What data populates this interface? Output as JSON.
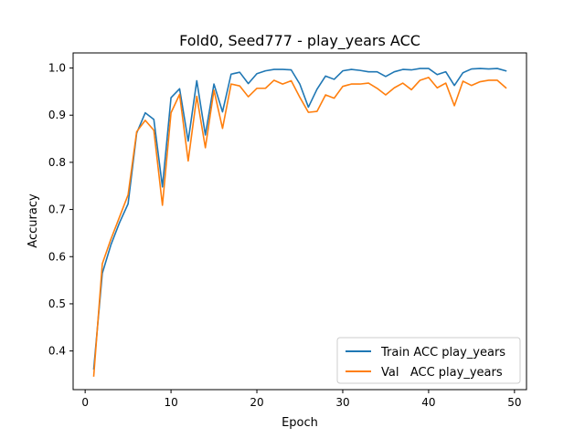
{
  "chart_data": {
    "type": "line",
    "title": "Fold0, Seed777 - play_years ACC",
    "xlabel": "Epoch",
    "ylabel": "Accuracy",
    "xlim": [
      -1.4,
      51.4
    ],
    "ylim": [
      0.318,
      1.032
    ],
    "xticks": [
      0,
      10,
      20,
      30,
      40,
      50
    ],
    "yticks": [
      0.4,
      0.5,
      0.6,
      0.7,
      0.8,
      0.9,
      1.0
    ],
    "ytick_labels": [
      "0.4",
      "0.5",
      "0.6",
      "0.7",
      "0.8",
      "0.9",
      "1.0"
    ],
    "grid": false,
    "legend_position": "lower-right",
    "x": [
      1,
      2,
      3,
      4,
      5,
      6,
      7,
      8,
      9,
      10,
      11,
      12,
      13,
      14,
      15,
      16,
      17,
      18,
      19,
      20,
      21,
      22,
      23,
      24,
      25,
      26,
      27,
      28,
      29,
      30,
      31,
      32,
      33,
      34,
      35,
      36,
      37,
      38,
      39,
      40,
      41,
      42,
      43,
      44,
      45,
      46,
      47,
      48,
      49
    ],
    "series": [
      {
        "name": "Train ACC play_years",
        "color": "#1f77b4",
        "values": [
          0.362,
          0.565,
          0.625,
          0.672,
          0.712,
          0.862,
          0.905,
          0.891,
          0.748,
          0.937,
          0.956,
          0.845,
          0.973,
          0.858,
          0.966,
          0.907,
          0.987,
          0.991,
          0.967,
          0.988,
          0.994,
          0.997,
          0.997,
          0.996,
          0.966,
          0.917,
          0.955,
          0.983,
          0.976,
          0.994,
          0.997,
          0.995,
          0.992,
          0.992,
          0.982,
          0.992,
          0.997,
          0.996,
          0.999,
          0.999,
          0.986,
          0.992,
          0.963,
          0.99,
          0.998,
          0.999,
          0.998,
          0.999,
          0.994
        ]
      },
      {
        "name": "Val   ACC play_years",
        "color": "#ff7f0e",
        "values": [
          0.347,
          0.585,
          0.637,
          0.684,
          0.731,
          0.865,
          0.889,
          0.868,
          0.709,
          0.905,
          0.944,
          0.803,
          0.94,
          0.831,
          0.953,
          0.872,
          0.966,
          0.962,
          0.939,
          0.957,
          0.957,
          0.974,
          0.966,
          0.973,
          0.938,
          0.906,
          0.908,
          0.943,
          0.936,
          0.961,
          0.966,
          0.966,
          0.968,
          0.957,
          0.943,
          0.958,
          0.968,
          0.954,
          0.974,
          0.98,
          0.958,
          0.968,
          0.92,
          0.972,
          0.963,
          0.971,
          0.974,
          0.974,
          0.958
        ]
      }
    ]
  }
}
